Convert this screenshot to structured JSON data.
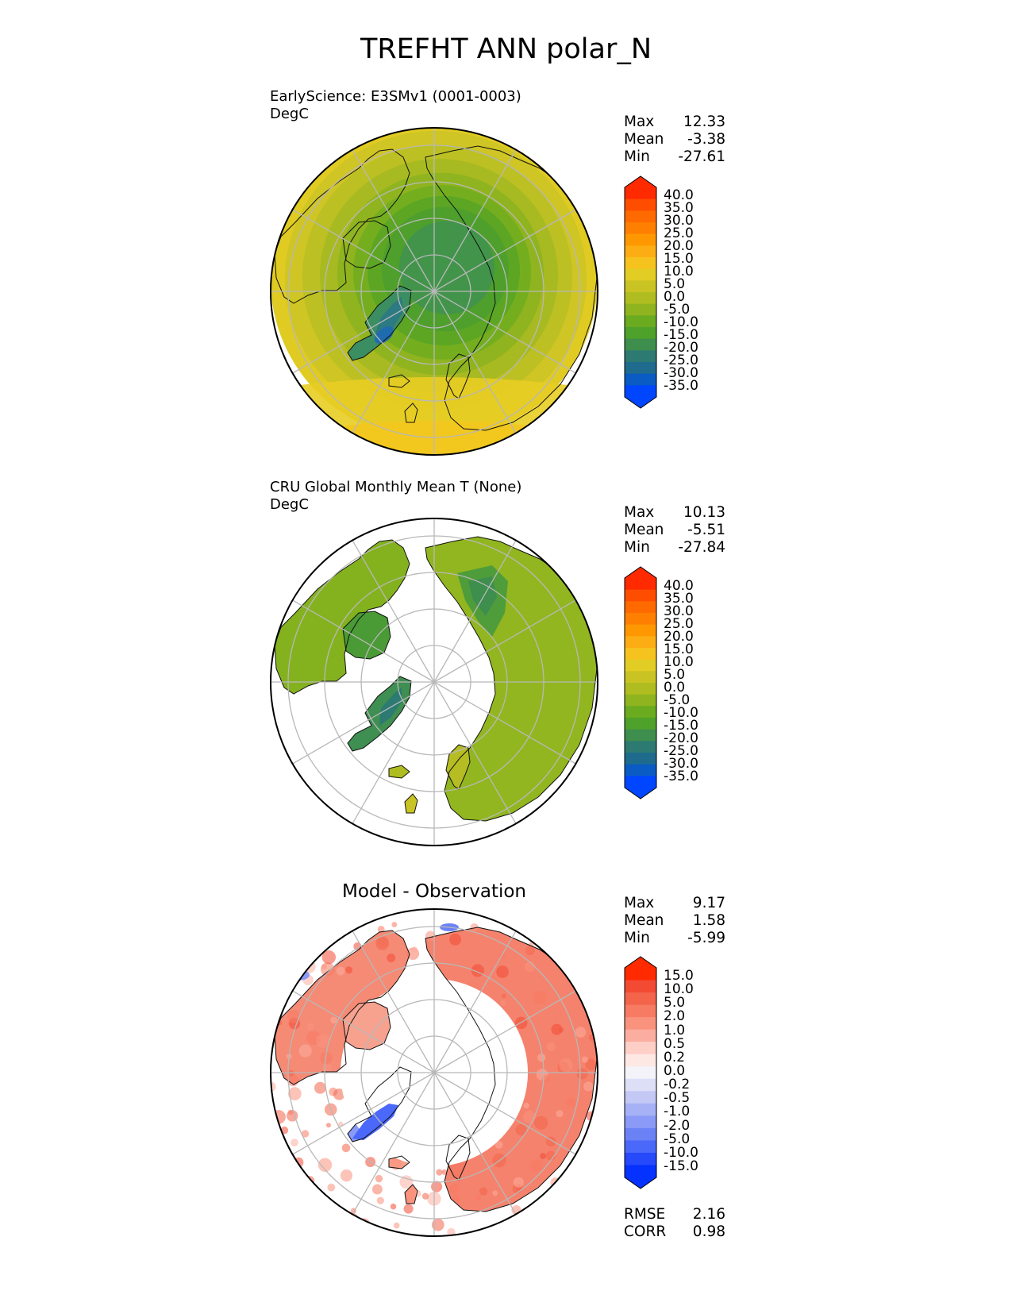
{
  "title": "TREFHT ANN polar_N",
  "panels": [
    {
      "id": "test",
      "subtitle_line1": "EarlyScience: E3SMv1 (0001-0003)",
      "subtitle_line2": "DegC",
      "stats": {
        "max_label": "Max",
        "max": "12.33",
        "mean_label": "Mean",
        "mean": "-3.38",
        "min_label": "Min",
        "min": "-27.61"
      },
      "colorbar": {
        "labels": [
          "40.0",
          "35.0",
          "30.0",
          "25.0",
          "20.0",
          "15.0",
          "10.0",
          "5.0",
          "0.0",
          "-5.0",
          "-10.0",
          "-15.0",
          "-20.0",
          "-25.0",
          "-30.0",
          "-35.0"
        ],
        "colors": [
          "#ff2a00",
          "#ff4d00",
          "#ff6a00",
          "#ff8000",
          "#ff9800",
          "#fdad14",
          "#f5c21e",
          "#e2cd24",
          "#c9c424",
          "#b0bd20",
          "#8fb41f",
          "#6aab1f",
          "#4ea12a",
          "#3e8e4d",
          "#2c7a72",
          "#1f6b8e",
          "#0b5bc4",
          "#0046ff"
        ]
      },
      "map_style": "full"
    },
    {
      "id": "reference",
      "subtitle_line1": "CRU Global Monthly Mean T (None)",
      "subtitle_line2": "DegC",
      "stats": {
        "max_label": "Max",
        "max": "10.13",
        "mean_label": "Mean",
        "mean": "-5.51",
        "min_label": "Min",
        "min": "-27.84"
      },
      "colorbar": {
        "labels": [
          "40.0",
          "35.0",
          "30.0",
          "25.0",
          "20.0",
          "15.0",
          "10.0",
          "5.0",
          "0.0",
          "-5.0",
          "-10.0",
          "-15.0",
          "-20.0",
          "-25.0",
          "-30.0",
          "-35.0"
        ],
        "colors": [
          "#ff2a00",
          "#ff4d00",
          "#ff6a00",
          "#ff8000",
          "#ff9800",
          "#fdad14",
          "#f5c21e",
          "#e2cd24",
          "#c9c424",
          "#b0bd20",
          "#8fb41f",
          "#6aab1f",
          "#4ea12a",
          "#3e8e4d",
          "#2c7a72",
          "#1f6b8e",
          "#0b5bc4",
          "#0046ff"
        ]
      },
      "map_style": "land"
    },
    {
      "id": "difference",
      "panel_title": "Model - Observation",
      "stats": {
        "max_label": "Max",
        "max": "9.17",
        "mean_label": "Mean",
        "mean": "1.58",
        "min_label": "Min",
        "min": "-5.99"
      },
      "metrics": {
        "rmse_label": "RMSE",
        "rmse": "2.16",
        "corr_label": "CORR",
        "corr": "0.98"
      },
      "colorbar": {
        "labels": [
          "15.0",
          "10.0",
          "5.0",
          "2.0",
          "1.0",
          "0.5",
          "0.2",
          "0.0",
          "-0.2",
          "-0.5",
          "-1.0",
          "-2.0",
          "-5.0",
          "-10.0",
          "-15.0"
        ],
        "colors": [
          "#ff2a00",
          "#f24a33",
          "#f3644b",
          "#f77a62",
          "#f9937e",
          "#fbaea0",
          "#fdcfc6",
          "#fde8e4",
          "#f4f3fa",
          "#dcdff6",
          "#c3c8f5",
          "#a6b1f6",
          "#8a9af6",
          "#6b82f7",
          "#4a68f9",
          "#2549fb",
          "#0532ff"
        ]
      },
      "map_style": "diff"
    }
  ]
}
